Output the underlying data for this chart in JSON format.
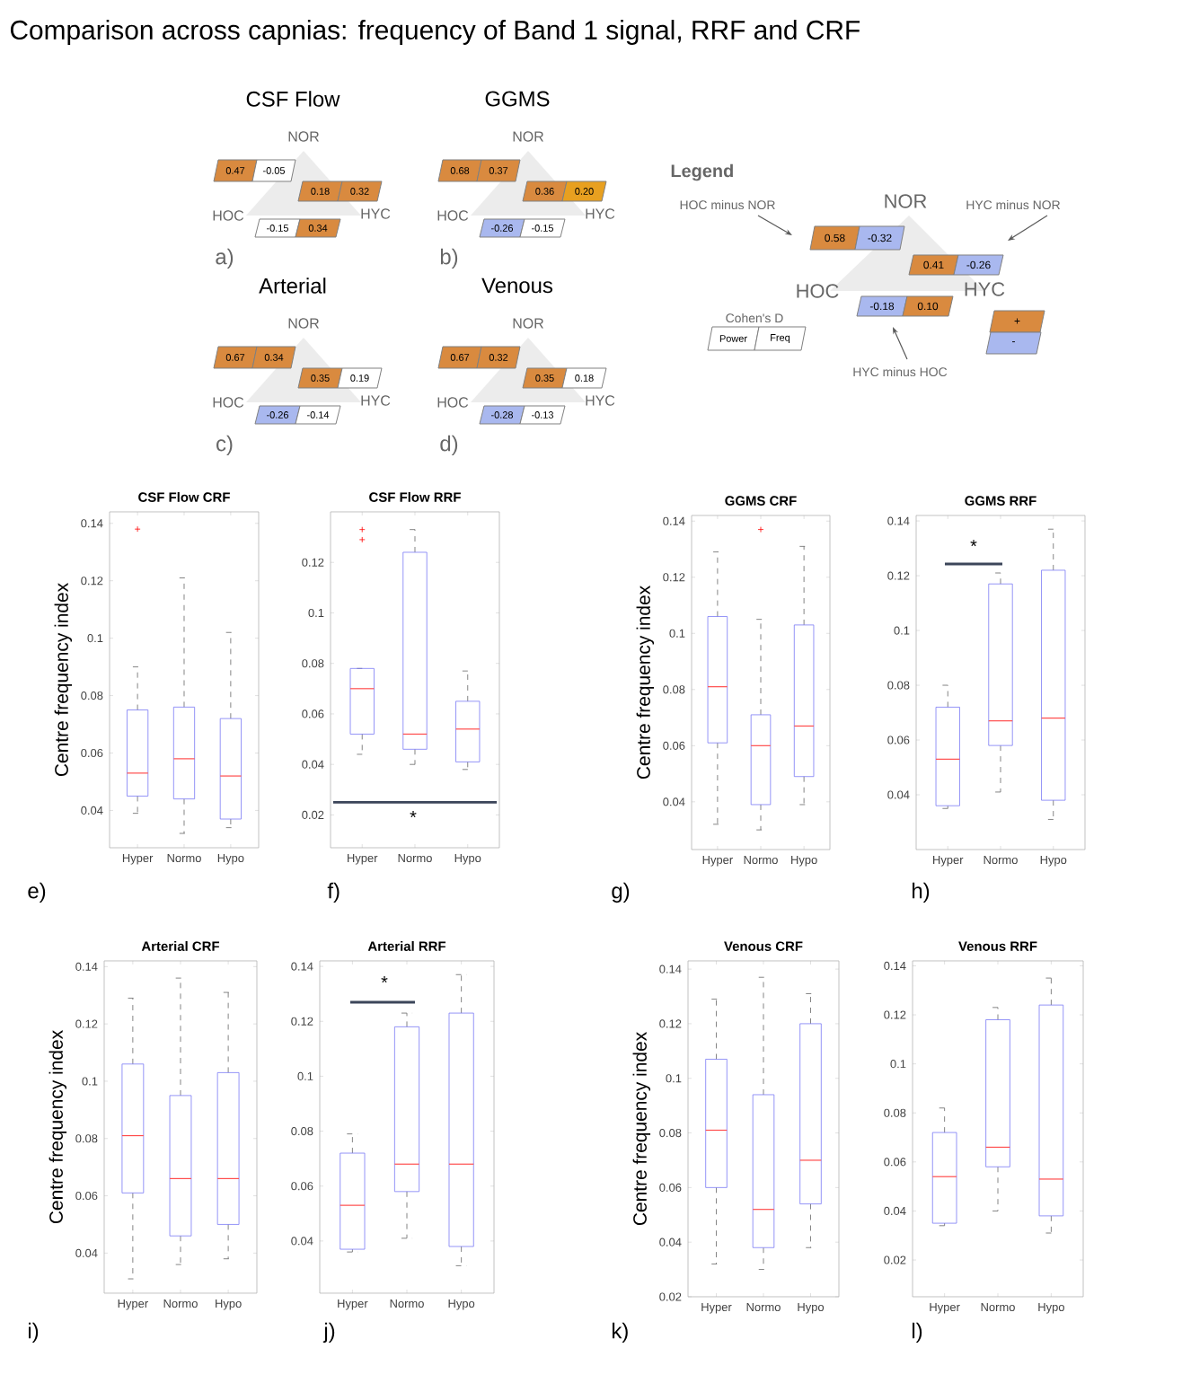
{
  "chart_data": [
    {
      "type": "other",
      "title": "Comparison across capnias: frequency of Band 1 signal, RRF and CRF"
    },
    {
      "type": "other",
      "title": "CSF Flow",
      "colors": [
        "#d98a3f",
        "#ffffff",
        "#d98a3f",
        "#d98a3f",
        "#ffffff",
        "#d98a3f"
      ],
      "annotations": [
        "NOR",
        "HOC",
        "HYC",
        "a)",
        "0.47",
        "-0.05",
        "0.18",
        "0.32",
        "-0.15",
        "0.34"
      ]
    },
    {
      "type": "other",
      "title": "GGMS",
      "colors": [
        "#d98a3f",
        "#d98a3f",
        "#d98a3f",
        "#e8a020",
        "#a9b8ef",
        "#ffffff"
      ],
      "annotations": [
        "NOR",
        "HOC",
        "HYC",
        "b)",
        "0.68",
        "0.37",
        "0.36",
        "0.20",
        "-0.26",
        "-0.15"
      ]
    },
    {
      "type": "other",
      "title": "Arterial",
      "colors": [
        "#d98a3f",
        "#d98a3f",
        "#d98a3f",
        "#ffffff",
        "#a9b8ef",
        "#ffffff"
      ],
      "annotations": [
        "NOR",
        "HOC",
        "HYC",
        "c)",
        "0.67",
        "0.34",
        "0.35",
        "0.19",
        "-0.26",
        "-0.14"
      ]
    },
    {
      "type": "other",
      "title": "Venous",
      "colors": [
        "#d98a3f",
        "#d98a3f",
        "#d98a3f",
        "#ffffff",
        "#a9b8ef",
        "#ffffff"
      ],
      "annotations": [
        "NOR",
        "HOC",
        "HYC",
        "d)",
        "0.67",
        "0.32",
        "0.35",
        "0.18",
        "-0.28",
        "-0.13"
      ]
    },
    {
      "type": "other",
      "title": "Legend",
      "colors": [
        "#d98a3f",
        "#a9b8ef",
        "#d98a3f",
        "#a9b8ef",
        "#a9b8ef",
        "#d98a3f",
        "#ffffff",
        "#ffffff",
        "#d98a3f",
        "#a9b8ef"
      ],
      "annotations": [
        "NOR",
        "HOC",
        "HYC",
        "HOC minus NOR",
        "HYC minus NOR",
        "HYC minus HOC",
        "Cohen's D",
        "0.58",
        "-0.32",
        "0.41",
        "-0.26",
        "-0.18",
        "0.10",
        "Power",
        "Freq",
        "+",
        "-"
      ]
    },
    {
      "type": "box",
      "title": "CSF Flow CRF",
      "ylabel": "Centre frequency index",
      "categories": [
        "Hyper",
        "Normo",
        "Hypo"
      ],
      "color": "#7a7af5",
      "ylim": [
        0.027,
        0.144
      ],
      "yticks": [
        0.04,
        0.06,
        0.08,
        0.1,
        0.12,
        0.14
      ],
      "annotations": [
        "e)"
      ],
      "boxes": [
        {
          "low": 0.039,
          "q1": 0.045,
          "median": 0.053,
          "q3": 0.075,
          "high": 0.09,
          "outliers": [
            0.138
          ]
        },
        {
          "low": 0.032,
          "q1": 0.044,
          "median": 0.058,
          "q3": 0.076,
          "high": 0.121
        },
        {
          "low": 0.034,
          "q1": 0.037,
          "median": 0.052,
          "q3": 0.072,
          "high": 0.102
        }
      ]
    },
    {
      "type": "box",
      "title": "CSF Flow RRF",
      "categories": [
        "Hyper",
        "Normo",
        "Hypo"
      ],
      "color": "#7a7af5",
      "ylim": [
        0.007,
        0.14
      ],
      "yticks": [
        0.02,
        0.04,
        0.06,
        0.08,
        0.1,
        0.12
      ],
      "annotations": [
        "f)",
        "*"
      ],
      "ref_lines": [
        {
          "axis": "y",
          "value": 0.025,
          "color": "#3c465a"
        }
      ],
      "boxes": [
        {
          "low": 0.044,
          "q1": 0.052,
          "median": 0.07,
          "q3": 0.078,
          "high": 0.078,
          "outliers": [
            0.129,
            0.133
          ]
        },
        {
          "low": 0.04,
          "q1": 0.046,
          "median": 0.052,
          "q3": 0.124,
          "high": 0.133
        },
        {
          "low": 0.038,
          "q1": 0.041,
          "median": 0.054,
          "q3": 0.065,
          "high": 0.077
        }
      ]
    },
    {
      "type": "box",
      "title": "GGMS CRF",
      "ylabel": "Centre frequency index",
      "categories": [
        "Hyper",
        "Normo",
        "Hypo"
      ],
      "color": "#7a7af5",
      "ylim": [
        0.023,
        0.142
      ],
      "yticks": [
        0.04,
        0.06,
        0.08,
        0.1,
        0.12,
        0.14
      ],
      "annotations": [
        "g)"
      ],
      "boxes": [
        {
          "low": 0.032,
          "q1": 0.061,
          "median": 0.081,
          "q3": 0.106,
          "high": 0.129
        },
        {
          "low": 0.03,
          "q1": 0.039,
          "median": 0.06,
          "q3": 0.071,
          "high": 0.105,
          "outliers": [
            0.137
          ]
        },
        {
          "low": 0.039,
          "q1": 0.049,
          "median": 0.067,
          "q3": 0.103,
          "high": 0.131
        }
      ]
    },
    {
      "type": "box",
      "title": "GGMS RRF",
      "categories": [
        "Hyper",
        "Normo",
        "Hypo"
      ],
      "color": "#7a7af5",
      "ylim": [
        0.02,
        0.142
      ],
      "yticks": [
        0.04,
        0.06,
        0.08,
        0.1,
        0.12,
        0.14
      ],
      "annotations": [
        "h)",
        "*"
      ],
      "boxes": [
        {
          "low": 0.035,
          "q1": 0.036,
          "median": 0.053,
          "q3": 0.072,
          "high": 0.08
        },
        {
          "low": 0.041,
          "q1": 0.058,
          "median": 0.067,
          "q3": 0.117,
          "high": 0.121
        },
        {
          "low": 0.031,
          "q1": 0.038,
          "median": 0.068,
          "q3": 0.122,
          "high": 0.137
        }
      ]
    },
    {
      "type": "box",
      "title": "Arterial CRF",
      "ylabel": "Centre frequency index",
      "categories": [
        "Hyper",
        "Normo",
        "Hypo"
      ],
      "color": "#7a7af5",
      "ylim": [
        0.026,
        0.142
      ],
      "yticks": [
        0.04,
        0.06,
        0.08,
        0.1,
        0.12,
        0.14
      ],
      "annotations": [
        "i)"
      ],
      "boxes": [
        {
          "low": 0.031,
          "q1": 0.061,
          "median": 0.081,
          "q3": 0.106,
          "high": 0.129
        },
        {
          "low": 0.036,
          "q1": 0.046,
          "median": 0.066,
          "q3": 0.095,
          "high": 0.136
        },
        {
          "low": 0.038,
          "q1": 0.05,
          "median": 0.066,
          "q3": 0.103,
          "high": 0.131
        }
      ]
    },
    {
      "type": "box",
      "title": "Arterial RRF",
      "categories": [
        "Hyper",
        "Normo",
        "Hypo"
      ],
      "color": "#7a7af5",
      "ylim": [
        0.021,
        0.142
      ],
      "yticks": [
        0.04,
        0.06,
        0.08,
        0.1,
        0.12,
        0.14
      ],
      "annotations": [
        "j)",
        "*"
      ],
      "boxes": [
        {
          "low": 0.036,
          "q1": 0.037,
          "median": 0.053,
          "q3": 0.072,
          "high": 0.079
        },
        {
          "low": 0.041,
          "q1": 0.058,
          "median": 0.068,
          "q3": 0.118,
          "high": 0.123
        },
        {
          "low": 0.031,
          "q1": 0.038,
          "median": 0.068,
          "q3": 0.123,
          "high": 0.137
        }
      ]
    },
    {
      "type": "box",
      "title": "Venous CRF",
      "ylabel": "Centre frequency index",
      "categories": [
        "Hyper",
        "Normo",
        "Hypo"
      ],
      "color": "#7a7af5",
      "ylim": [
        0.02,
        0.143
      ],
      "yticks": [
        0.02,
        0.04,
        0.06,
        0.08,
        0.1,
        0.12,
        0.14
      ],
      "annotations": [
        "k)"
      ],
      "boxes": [
        {
          "low": 0.032,
          "q1": 0.06,
          "median": 0.081,
          "q3": 0.107,
          "high": 0.129
        },
        {
          "low": 0.03,
          "q1": 0.038,
          "median": 0.052,
          "q3": 0.094,
          "high": 0.137
        },
        {
          "low": 0.038,
          "q1": 0.054,
          "median": 0.07,
          "q3": 0.12,
          "high": 0.131
        }
      ]
    },
    {
      "type": "box",
      "title": "Venous RRF",
      "categories": [
        "Hyper",
        "Normo",
        "Hypo"
      ],
      "color": "#7a7af5",
      "ylim": [
        0.005,
        0.142
      ],
      "yticks": [
        0.02,
        0.04,
        0.06,
        0.08,
        0.1,
        0.12,
        0.14
      ],
      "annotations": [
        "l)"
      ],
      "boxes": [
        {
          "low": 0.034,
          "q1": 0.035,
          "median": 0.054,
          "q3": 0.072,
          "high": 0.082
        },
        {
          "low": 0.04,
          "q1": 0.058,
          "median": 0.066,
          "q3": 0.118,
          "high": 0.123
        },
        {
          "low": 0.031,
          "q1": 0.038,
          "median": 0.053,
          "q3": 0.124,
          "high": 0.135
        }
      ]
    }
  ]
}
